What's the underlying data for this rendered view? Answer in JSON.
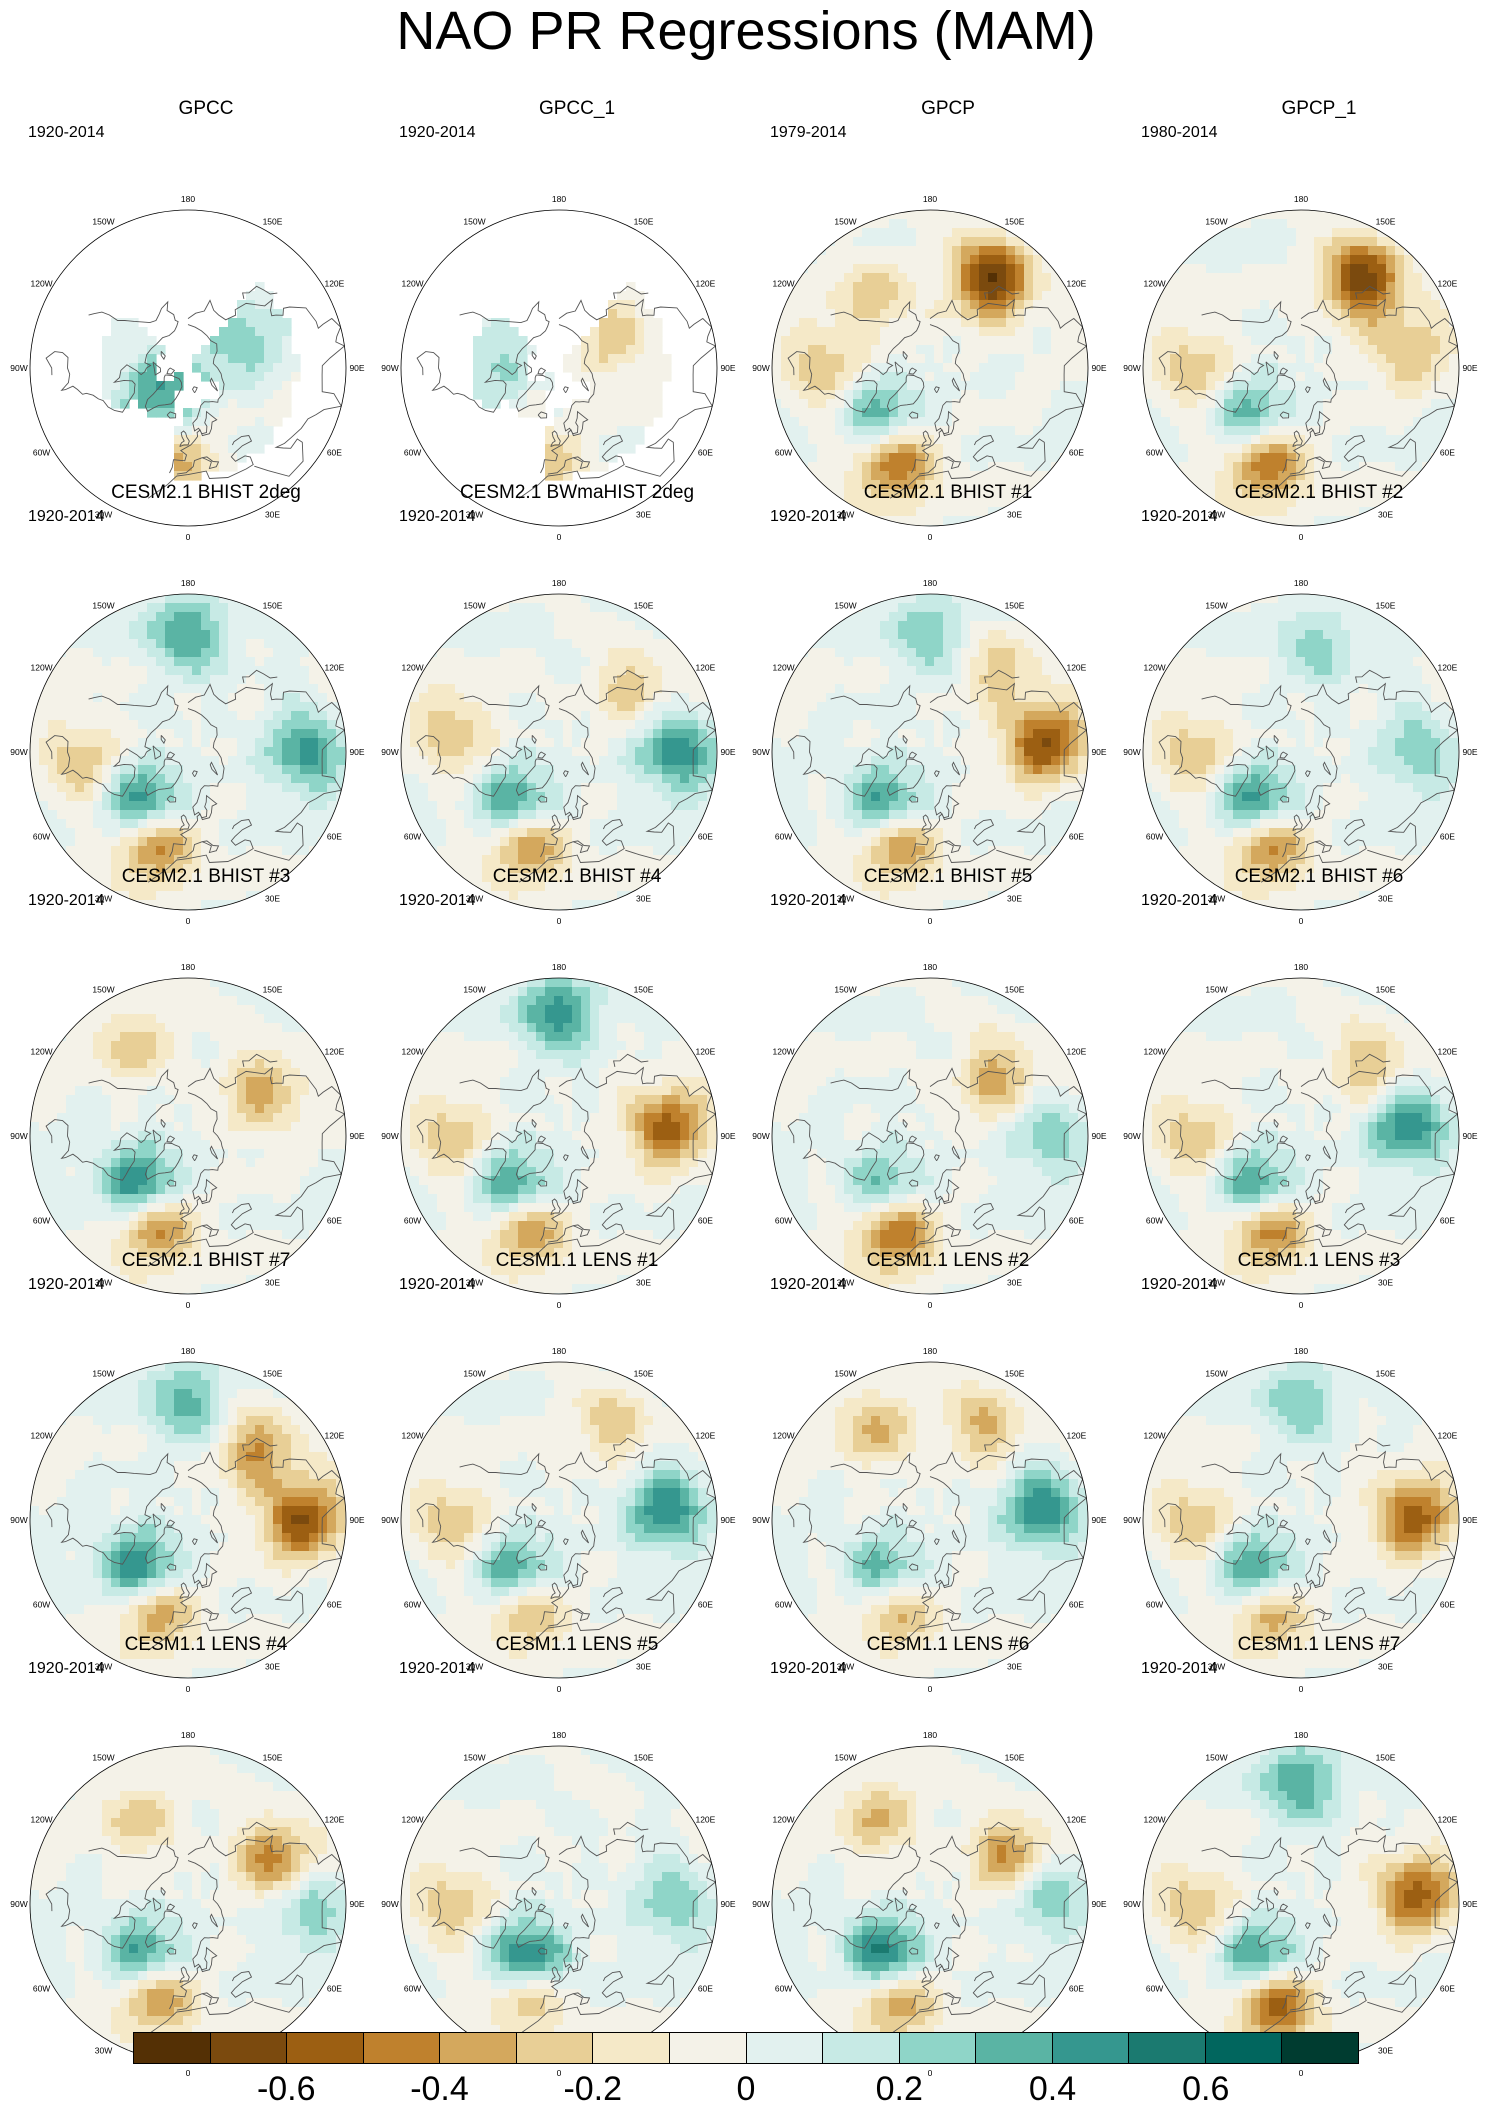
{
  "title": "NAO PR Regressions (MAM)",
  "colorbar": {
    "colors": [
      "#543005",
      "#7b4a0e",
      "#9c5f12",
      "#bf812d",
      "#d4a85d",
      "#e8cf96",
      "#f5e9c8",
      "#f4f2e8",
      "#e2f1ef",
      "#c7eae5",
      "#8fd5c8",
      "#5ab4a4",
      "#35978f",
      "#1b7a70",
      "#01665e",
      "#003c30"
    ],
    "tick_labels": [
      "-0.6",
      "-0.4",
      "-0.2",
      "0",
      "0.2",
      "0.4",
      "0.6"
    ]
  },
  "map": {
    "longitude_labels": [
      "180",
      "150E",
      "120E",
      "90E",
      "60E",
      "30E",
      "0",
      "30W",
      "60W",
      "90W",
      "120W",
      "150W"
    ]
  },
  "panels": [
    {
      "title": "GPCC",
      "period": "1920-2014",
      "coverage": "land",
      "features": [
        {
          "lon": -45,
          "lat": 72,
          "sign": "pos",
          "strength": 0.45
        },
        {
          "lon": -5,
          "lat": 42,
          "sign": "neg",
          "strength": 0.3
        },
        {
          "lon": 120,
          "lat": 60,
          "sign": "pos",
          "strength": 0.3
        }
      ]
    },
    {
      "title": "GPCC_1",
      "period": "1920-2014",
      "coverage": "land",
      "features": [
        {
          "lon": -95,
          "lat": 58,
          "sign": "pos",
          "strength": 0.25
        },
        {
          "lon": -5,
          "lat": 42,
          "sign": "neg",
          "strength": 0.25
        },
        {
          "lon": 120,
          "lat": 60,
          "sign": "neg",
          "strength": 0.25
        }
      ]
    },
    {
      "title": "GPCP",
      "period": "1979-2014",
      "coverage": "global",
      "features": [
        {
          "lon": 145,
          "lat": 35,
          "sign": "neg",
          "strength": 0.7
        },
        {
          "lon": -20,
          "lat": 38,
          "sign": "neg",
          "strength": 0.55
        },
        {
          "lon": -45,
          "lat": 55,
          "sign": "pos",
          "strength": 0.4
        },
        {
          "lon": -90,
          "lat": 35,
          "sign": "neg",
          "strength": 0.3
        },
        {
          "lon": -140,
          "lat": 45,
          "sign": "neg",
          "strength": 0.25
        }
      ]
    },
    {
      "title": "GPCP_1",
      "period": "1980-2014",
      "coverage": "global",
      "features": [
        {
          "lon": 145,
          "lat": 35,
          "sign": "neg",
          "strength": 0.65
        },
        {
          "lon": -20,
          "lat": 38,
          "sign": "neg",
          "strength": 0.55
        },
        {
          "lon": -45,
          "lat": 55,
          "sign": "pos",
          "strength": 0.4
        },
        {
          "lon": -90,
          "lat": 35,
          "sign": "neg",
          "strength": 0.3
        },
        {
          "lon": 100,
          "lat": 35,
          "sign": "neg",
          "strength": 0.3
        }
      ]
    },
    {
      "title": "CESM2.1 BHIST 2deg",
      "period": "1920-2014",
      "coverage": "global",
      "features": [
        {
          "lon": -20,
          "lat": 40,
          "sign": "neg",
          "strength": 0.55
        },
        {
          "lon": -40,
          "lat": 55,
          "sign": "pos",
          "strength": 0.55
        },
        {
          "lon": 180,
          "lat": 30,
          "sign": "pos",
          "strength": 0.4
        },
        {
          "lon": 90,
          "lat": 30,
          "sign": "pos",
          "strength": 0.45
        },
        {
          "lon": -85,
          "lat": 35,
          "sign": "neg",
          "strength": 0.3
        }
      ]
    },
    {
      "title": "CESM2.1 BWmaHIST 2deg",
      "period": "1920-2014",
      "coverage": "global",
      "features": [
        {
          "lon": -20,
          "lat": 40,
          "sign": "neg",
          "strength": 0.5
        },
        {
          "lon": -40,
          "lat": 55,
          "sign": "pos",
          "strength": 0.5
        },
        {
          "lon": 90,
          "lat": 30,
          "sign": "pos",
          "strength": 0.5
        },
        {
          "lon": -100,
          "lat": 35,
          "sign": "neg",
          "strength": 0.3
        },
        {
          "lon": 130,
          "lat": 40,
          "sign": "neg",
          "strength": 0.25
        }
      ]
    },
    {
      "title": "CESM2.1 BHIST #1",
      "period": "1920-2014",
      "coverage": "global",
      "features": [
        {
          "lon": -20,
          "lat": 40,
          "sign": "neg",
          "strength": 0.5
        },
        {
          "lon": -40,
          "lat": 55,
          "sign": "pos",
          "strength": 0.5
        },
        {
          "lon": 95,
          "lat": 32,
          "sign": "neg",
          "strength": 0.6
        },
        {
          "lon": 180,
          "lat": 30,
          "sign": "pos",
          "strength": 0.3
        },
        {
          "lon": 140,
          "lat": 35,
          "sign": "neg",
          "strength": 0.25
        }
      ]
    },
    {
      "title": "CESM2.1 BHIST #2",
      "period": "1920-2014",
      "coverage": "global",
      "features": [
        {
          "lon": -20,
          "lat": 40,
          "sign": "neg",
          "strength": 0.55
        },
        {
          "lon": -40,
          "lat": 55,
          "sign": "pos",
          "strength": 0.55
        },
        {
          "lon": -90,
          "lat": 35,
          "sign": "neg",
          "strength": 0.3
        },
        {
          "lon": 170,
          "lat": 35,
          "sign": "pos",
          "strength": 0.25
        },
        {
          "lon": 90,
          "lat": 30,
          "sign": "pos",
          "strength": 0.3
        }
      ]
    },
    {
      "title": "CESM2.1 BHIST #3",
      "period": "1920-2014",
      "coverage": "global",
      "features": [
        {
          "lon": -20,
          "lat": 40,
          "sign": "neg",
          "strength": 0.5
        },
        {
          "lon": -45,
          "lat": 55,
          "sign": "pos",
          "strength": 0.55
        },
        {
          "lon": 120,
          "lat": 45,
          "sign": "neg",
          "strength": 0.35
        },
        {
          "lon": -150,
          "lat": 35,
          "sign": "neg",
          "strength": 0.25
        }
      ]
    },
    {
      "title": "CESM2.1 BHIST #4",
      "period": "1920-2014",
      "coverage": "global",
      "features": [
        {
          "lon": -20,
          "lat": 40,
          "sign": "neg",
          "strength": 0.5
        },
        {
          "lon": -40,
          "lat": 55,
          "sign": "pos",
          "strength": 0.5
        },
        {
          "lon": 180,
          "lat": 28,
          "sign": "pos",
          "strength": 0.45
        },
        {
          "lon": 95,
          "lat": 35,
          "sign": "neg",
          "strength": 0.55
        },
        {
          "lon": -90,
          "lat": 35,
          "sign": "neg",
          "strength": 0.3
        }
      ]
    },
    {
      "title": "CESM2.1 BHIST #5",
      "period": "1920-2014",
      "coverage": "global",
      "features": [
        {
          "lon": -20,
          "lat": 38,
          "sign": "neg",
          "strength": 0.6
        },
        {
          "lon": -40,
          "lat": 55,
          "sign": "pos",
          "strength": 0.4
        },
        {
          "lon": 130,
          "lat": 45,
          "sign": "neg",
          "strength": 0.35
        },
        {
          "lon": 90,
          "lat": 30,
          "sign": "pos",
          "strength": 0.3
        }
      ]
    },
    {
      "title": "CESM2.1 BHIST #6",
      "period": "1920-2014",
      "coverage": "global",
      "features": [
        {
          "lon": -20,
          "lat": 40,
          "sign": "neg",
          "strength": 0.55
        },
        {
          "lon": -40,
          "lat": 55,
          "sign": "pos",
          "strength": 0.5
        },
        {
          "lon": 95,
          "lat": 35,
          "sign": "pos",
          "strength": 0.5
        },
        {
          "lon": 135,
          "lat": 40,
          "sign": "neg",
          "strength": 0.3
        },
        {
          "lon": -90,
          "lat": 35,
          "sign": "neg",
          "strength": 0.3
        }
      ]
    },
    {
      "title": "CESM2.1 BHIST #7",
      "period": "1920-2014",
      "coverage": "global",
      "features": [
        {
          "lon": -20,
          "lat": 40,
          "sign": "neg",
          "strength": 0.45
        },
        {
          "lon": -45,
          "lat": 55,
          "sign": "pos",
          "strength": 0.55
        },
        {
          "lon": 90,
          "lat": 32,
          "sign": "neg",
          "strength": 0.6
        },
        {
          "lon": 135,
          "lat": 40,
          "sign": "neg",
          "strength": 0.4
        },
        {
          "lon": 180,
          "lat": 30,
          "sign": "pos",
          "strength": 0.35
        }
      ]
    },
    {
      "title": "CESM1.1 LENS #1",
      "period": "1920-2014",
      "coverage": "global",
      "features": [
        {
          "lon": -20,
          "lat": 40,
          "sign": "neg",
          "strength": 0.4
        },
        {
          "lon": -40,
          "lat": 55,
          "sign": "pos",
          "strength": 0.45
        },
        {
          "lon": 95,
          "lat": 35,
          "sign": "pos",
          "strength": 0.5
        },
        {
          "lon": -90,
          "lat": 35,
          "sign": "neg",
          "strength": 0.3
        },
        {
          "lon": 150,
          "lat": 35,
          "sign": "neg",
          "strength": 0.25
        }
      ]
    },
    {
      "title": "CESM1.1 LENS #2",
      "period": "1920-2014",
      "coverage": "global",
      "features": [
        {
          "lon": -20,
          "lat": 40,
          "sign": "neg",
          "strength": 0.4
        },
        {
          "lon": -40,
          "lat": 55,
          "sign": "pos",
          "strength": 0.4
        },
        {
          "lon": 95,
          "lat": 33,
          "sign": "pos",
          "strength": 0.5
        },
        {
          "lon": -150,
          "lat": 35,
          "sign": "neg",
          "strength": 0.3
        },
        {
          "lon": 150,
          "lat": 35,
          "sign": "neg",
          "strength": 0.3
        }
      ]
    },
    {
      "title": "CESM1.1 LENS #3",
      "period": "1920-2014",
      "coverage": "global",
      "features": [
        {
          "lon": -20,
          "lat": 40,
          "sign": "neg",
          "strength": 0.45
        },
        {
          "lon": -40,
          "lat": 55,
          "sign": "pos",
          "strength": 0.5
        },
        {
          "lon": 92,
          "lat": 33,
          "sign": "neg",
          "strength": 0.55
        },
        {
          "lon": 180,
          "lat": 30,
          "sign": "pos",
          "strength": 0.3
        },
        {
          "lon": -90,
          "lat": 35,
          "sign": "neg",
          "strength": 0.3
        }
      ]
    },
    {
      "title": "CESM1.1 LENS #4",
      "period": "1920-2014",
      "coverage": "global",
      "features": [
        {
          "lon": -20,
          "lat": 40,
          "sign": "neg",
          "strength": 0.5
        },
        {
          "lon": -40,
          "lat": 55,
          "sign": "pos",
          "strength": 0.5
        },
        {
          "lon": 115,
          "lat": 40,
          "sign": "neg",
          "strength": 0.5
        },
        {
          "lon": 90,
          "lat": 30,
          "sign": "pos",
          "strength": 0.35
        },
        {
          "lon": -150,
          "lat": 40,
          "sign": "neg",
          "strength": 0.25
        }
      ]
    },
    {
      "title": "CESM1.1 LENS #5",
      "period": "1920-2014",
      "coverage": "global",
      "features": [
        {
          "lon": -20,
          "lat": 40,
          "sign": "neg",
          "strength": 0.4
        },
        {
          "lon": -30,
          "lat": 58,
          "sign": "pos",
          "strength": 0.6
        },
        {
          "lon": 90,
          "lat": 32,
          "sign": "pos",
          "strength": 0.3
        },
        {
          "lon": -90,
          "lat": 35,
          "sign": "neg",
          "strength": 0.3
        }
      ]
    },
    {
      "title": "CESM1.1 LENS #6",
      "period": "1920-2014",
      "coverage": "global",
      "features": [
        {
          "lon": -20,
          "lat": 38,
          "sign": "neg",
          "strength": 0.5
        },
        {
          "lon": -40,
          "lat": 55,
          "sign": "pos",
          "strength": 0.6
        },
        {
          "lon": 120,
          "lat": 42,
          "sign": "neg",
          "strength": 0.45
        },
        {
          "lon": 95,
          "lat": 30,
          "sign": "pos",
          "strength": 0.35
        },
        {
          "lon": -150,
          "lat": 38,
          "sign": "neg",
          "strength": 0.3
        }
      ]
    },
    {
      "title": "CESM1.1 LENS #7",
      "period": "1920-2014",
      "coverage": "global",
      "features": [
        {
          "lon": -15,
          "lat": 38,
          "sign": "neg",
          "strength": 0.65
        },
        {
          "lon": -35,
          "lat": 55,
          "sign": "pos",
          "strength": 0.5
        },
        {
          "lon": 95,
          "lat": 32,
          "sign": "neg",
          "strength": 0.55
        },
        {
          "lon": 180,
          "lat": 28,
          "sign": "pos",
          "strength": 0.4
        },
        {
          "lon": -90,
          "lat": 35,
          "sign": "neg",
          "strength": 0.3
        }
      ]
    }
  ]
}
